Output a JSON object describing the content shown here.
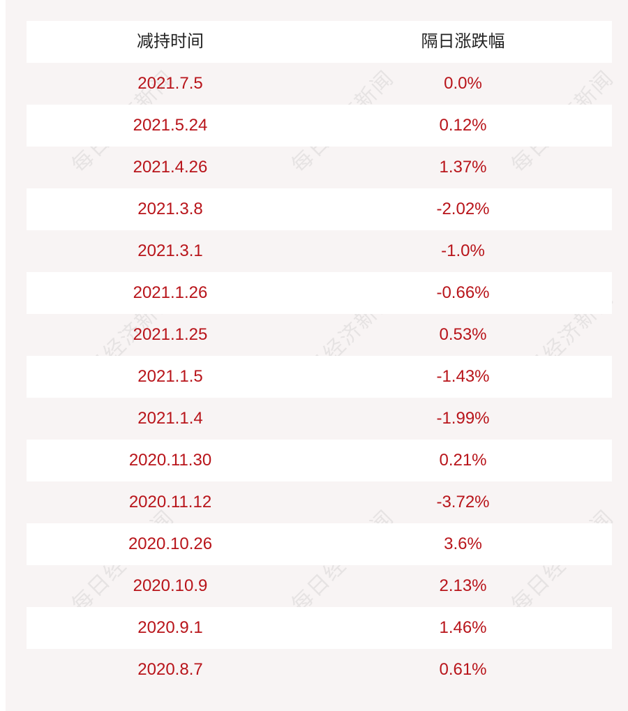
{
  "table": {
    "headers": [
      "减持时间",
      "隔日涨跌幅"
    ],
    "rows": [
      [
        "2021.7.5",
        "0.0%"
      ],
      [
        "2021.5.24",
        "0.12%"
      ],
      [
        "2021.4.26",
        "1.37%"
      ],
      [
        "2021.3.8",
        "-2.02%"
      ],
      [
        "2021.3.1",
        "-1.0%"
      ],
      [
        "2021.1.26",
        "-0.66%"
      ],
      [
        "2021.1.25",
        "0.53%"
      ],
      [
        "2021.1.5",
        "-1.43%"
      ],
      [
        "2021.1.4",
        "-1.99%"
      ],
      [
        "2020.11.30",
        "0.21%"
      ],
      [
        "2020.11.12",
        "-3.72%"
      ],
      [
        "2020.10.26",
        "3.6%"
      ],
      [
        "2020.10.9",
        "2.13%"
      ],
      [
        "2020.9.1",
        "1.46%"
      ],
      [
        "2020.8.7",
        "0.61%"
      ]
    ]
  },
  "watermark": "每日经济新闻",
  "colors": {
    "header_text": "#222222",
    "value_text": "#b8141a",
    "stripe": "#ffffff",
    "background": "#f8f4f4"
  }
}
